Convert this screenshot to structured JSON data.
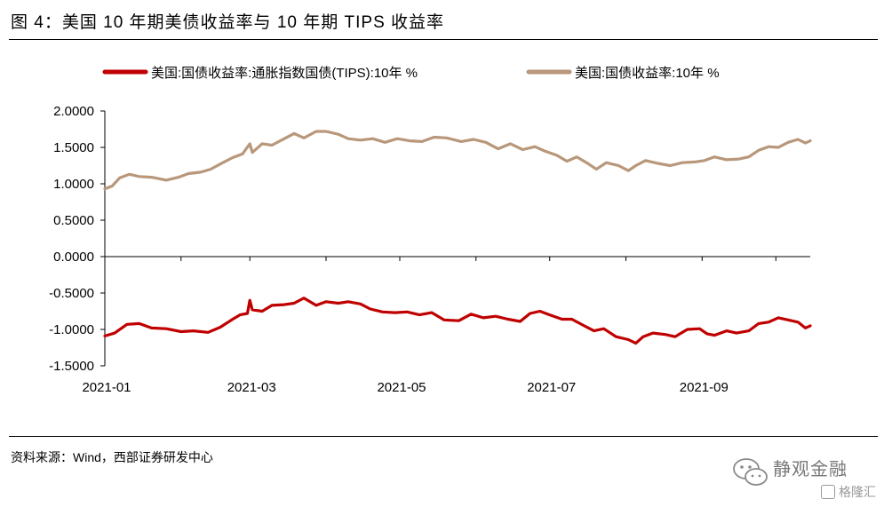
{
  "header": {
    "title": "图 4：美国 10 年期美债收益率与 10 年期 TIPS 收益率"
  },
  "footer": {
    "source": "资料来源：Wind，西部证券研发中心"
  },
  "watermark": {
    "text": "静观金融",
    "badge": "格隆汇",
    "icon": "wechat-icon"
  },
  "chart_data": {
    "type": "line",
    "title": "",
    "xlabel": "",
    "ylabel": "",
    "ylim": [
      -1.5,
      2.0
    ],
    "yticks": [
      "2.0000",
      "1.5000",
      "1.0000",
      "0.5000",
      "0.0000",
      "-0.5000",
      "-1.0000",
      "-1.5000"
    ],
    "ytick_values": [
      2.0,
      1.5,
      1.0,
      0.5,
      0.0,
      -0.5,
      -1.0,
      -1.5
    ],
    "xlim": [
      "2021-01-01",
      "2021-10-15"
    ],
    "xticks": [
      {
        "date": "2021-01-01",
        "label": "2021-01"
      },
      {
        "date": "2021-03-01",
        "label": "2021-03"
      },
      {
        "date": "2021-05-01",
        "label": "2021-05"
      },
      {
        "date": "2021-07-01",
        "label": "2021-07"
      },
      {
        "date": "2021-09-01",
        "label": "2021-09"
      }
    ],
    "grid": false,
    "legend_position": "top",
    "series": [
      {
        "name": "美国:国债收益率:通胀指数国债(TIPS):10年 %",
        "color": "#c00000",
        "points": [
          [
            "2021-01-01",
            -1.09
          ],
          [
            "2021-01-05",
            -1.05
          ],
          [
            "2021-01-10",
            -0.93
          ],
          [
            "2021-01-15",
            -0.92
          ],
          [
            "2021-01-20",
            -0.98
          ],
          [
            "2021-01-26",
            -0.99
          ],
          [
            "2021-02-01",
            -1.03
          ],
          [
            "2021-02-06",
            -1.02
          ],
          [
            "2021-02-12",
            -1.04
          ],
          [
            "2021-02-17",
            -0.97
          ],
          [
            "2021-02-22",
            -0.86
          ],
          [
            "2021-02-25",
            -0.8
          ],
          [
            "2021-02-28",
            -0.78
          ],
          [
            "2021-03-01",
            -0.6
          ],
          [
            "2021-03-02",
            -0.73
          ],
          [
            "2021-03-06",
            -0.75
          ],
          [
            "2021-03-10",
            -0.67
          ],
          [
            "2021-03-15",
            -0.66
          ],
          [
            "2021-03-19",
            -0.64
          ],
          [
            "2021-03-23",
            -0.57
          ],
          [
            "2021-03-28",
            -0.67
          ],
          [
            "2021-04-01",
            -0.62
          ],
          [
            "2021-04-06",
            -0.64
          ],
          [
            "2021-04-10",
            -0.62
          ],
          [
            "2021-04-15",
            -0.65
          ],
          [
            "2021-04-19",
            -0.72
          ],
          [
            "2021-04-24",
            -0.76
          ],
          [
            "2021-04-29",
            -0.77
          ],
          [
            "2021-05-04",
            -0.76
          ],
          [
            "2021-05-09",
            -0.8
          ],
          [
            "2021-05-14",
            -0.77
          ],
          [
            "2021-05-19",
            -0.87
          ],
          [
            "2021-05-25",
            -0.88
          ],
          [
            "2021-05-30",
            -0.79
          ],
          [
            "2021-06-04",
            -0.84
          ],
          [
            "2021-06-09",
            -0.82
          ],
          [
            "2021-06-14",
            -0.86
          ],
          [
            "2021-06-19",
            -0.89
          ],
          [
            "2021-06-23",
            -0.78
          ],
          [
            "2021-06-27",
            -0.75
          ],
          [
            "2021-07-01",
            -0.8
          ],
          [
            "2021-07-06",
            -0.86
          ],
          [
            "2021-07-10",
            -0.86
          ],
          [
            "2021-07-15",
            -0.95
          ],
          [
            "2021-07-19",
            -1.02
          ],
          [
            "2021-07-23",
            -0.99
          ],
          [
            "2021-07-28",
            -1.1
          ],
          [
            "2021-08-02",
            -1.14
          ],
          [
            "2021-08-05",
            -1.19
          ],
          [
            "2021-08-08",
            -1.1
          ],
          [
            "2021-08-12",
            -1.05
          ],
          [
            "2021-08-17",
            -1.07
          ],
          [
            "2021-08-21",
            -1.1
          ],
          [
            "2021-08-26",
            -1.0
          ],
          [
            "2021-08-31",
            -0.99
          ],
          [
            "2021-09-03",
            -1.06
          ],
          [
            "2021-09-06",
            -1.08
          ],
          [
            "2021-09-11",
            -1.02
          ],
          [
            "2021-09-15",
            -1.05
          ],
          [
            "2021-09-20",
            -1.02
          ],
          [
            "2021-09-24",
            -0.92
          ],
          [
            "2021-09-28",
            -0.9
          ],
          [
            "2021-10-02",
            -0.84
          ],
          [
            "2021-10-06",
            -0.87
          ],
          [
            "2021-10-10",
            -0.9
          ],
          [
            "2021-10-13",
            -0.98
          ],
          [
            "2021-10-15",
            -0.95
          ]
        ]
      },
      {
        "name": "美国:国债收益率:10年 %",
        "color": "#b8977a",
        "points": [
          [
            "2021-01-01",
            0.93
          ],
          [
            "2021-01-04",
            0.97
          ],
          [
            "2021-01-07",
            1.08
          ],
          [
            "2021-01-11",
            1.13
          ],
          [
            "2021-01-15",
            1.1
          ],
          [
            "2021-01-20",
            1.09
          ],
          [
            "2021-01-26",
            1.05
          ],
          [
            "2021-01-31",
            1.09
          ],
          [
            "2021-02-04",
            1.14
          ],
          [
            "2021-02-09",
            1.16
          ],
          [
            "2021-02-13",
            1.2
          ],
          [
            "2021-02-18",
            1.29
          ],
          [
            "2021-02-22",
            1.36
          ],
          [
            "2021-02-26",
            1.41
          ],
          [
            "2021-03-01",
            1.55
          ],
          [
            "2021-03-02",
            1.43
          ],
          [
            "2021-03-06",
            1.55
          ],
          [
            "2021-03-10",
            1.53
          ],
          [
            "2021-03-15",
            1.62
          ],
          [
            "2021-03-19",
            1.69
          ],
          [
            "2021-03-23",
            1.63
          ],
          [
            "2021-03-28",
            1.72
          ],
          [
            "2021-04-01",
            1.72
          ],
          [
            "2021-04-06",
            1.68
          ],
          [
            "2021-04-10",
            1.62
          ],
          [
            "2021-04-15",
            1.6
          ],
          [
            "2021-04-20",
            1.62
          ],
          [
            "2021-04-25",
            1.57
          ],
          [
            "2021-04-30",
            1.62
          ],
          [
            "2021-05-05",
            1.59
          ],
          [
            "2021-05-10",
            1.58
          ],
          [
            "2021-05-15",
            1.64
          ],
          [
            "2021-05-20",
            1.63
          ],
          [
            "2021-05-26",
            1.58
          ],
          [
            "2021-05-31",
            1.61
          ],
          [
            "2021-06-05",
            1.57
          ],
          [
            "2021-06-10",
            1.48
          ],
          [
            "2021-06-15",
            1.55
          ],
          [
            "2021-06-20",
            1.47
          ],
          [
            "2021-06-25",
            1.51
          ],
          [
            "2021-06-29",
            1.45
          ],
          [
            "2021-07-04",
            1.39
          ],
          [
            "2021-07-08",
            1.31
          ],
          [
            "2021-07-12",
            1.37
          ],
          [
            "2021-07-16",
            1.29
          ],
          [
            "2021-07-20",
            1.2
          ],
          [
            "2021-07-24",
            1.29
          ],
          [
            "2021-07-29",
            1.25
          ],
          [
            "2021-08-02",
            1.18
          ],
          [
            "2021-08-05",
            1.25
          ],
          [
            "2021-08-09",
            1.32
          ],
          [
            "2021-08-14",
            1.28
          ],
          [
            "2021-08-19",
            1.25
          ],
          [
            "2021-08-24",
            1.29
          ],
          [
            "2021-08-29",
            1.3
          ],
          [
            "2021-09-02",
            1.32
          ],
          [
            "2021-09-06",
            1.37
          ],
          [
            "2021-09-11",
            1.33
          ],
          [
            "2021-09-16",
            1.34
          ],
          [
            "2021-09-20",
            1.37
          ],
          [
            "2021-09-24",
            1.46
          ],
          [
            "2021-09-28",
            1.51
          ],
          [
            "2021-10-02",
            1.5
          ],
          [
            "2021-10-06",
            1.57
          ],
          [
            "2021-10-10",
            1.61
          ],
          [
            "2021-10-13",
            1.56
          ],
          [
            "2021-10-15",
            1.59
          ]
        ]
      }
    ]
  }
}
